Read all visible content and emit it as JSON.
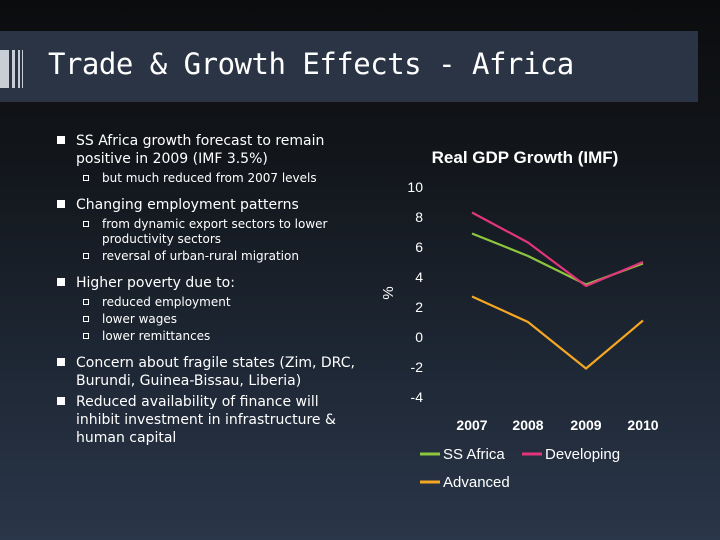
{
  "slide": {
    "title": "Trade & Growth Effects - Africa",
    "bullets": [
      {
        "text": "SS Africa growth forecast to remain positive in 2009  (IMF 3.5%)",
        "sub": [
          "but much reduced from 2007 levels"
        ]
      },
      {
        "text": "Changing employment patterns",
        "sub": [
          "from dynamic export sectors to lower productivity sectors",
          "reversal of urban-rural migration"
        ]
      },
      {
        "text": "Higher poverty due to:",
        "sub": [
          "reduced employment",
          "lower wages",
          "lower remittances"
        ]
      },
      {
        "text": "Concern about fragile states (Zim, DRC, Burundi, Guinea-Bissau, Liberia)",
        "sub": []
      },
      {
        "text": "Reduced availability of finance will inhibit investment in infrastructure & human capital",
        "sub": []
      }
    ]
  },
  "chart_data": {
    "type": "line",
    "title": "Real GDP Growth (IMF)",
    "xlabel": "",
    "ylabel": "%",
    "categories": [
      "2007",
      "2008",
      "2009",
      "2010"
    ],
    "y_ticks": [
      "10",
      "8",
      "6",
      "4",
      "2",
      "0",
      "-2",
      "-4"
    ],
    "ylim": [
      -4,
      10
    ],
    "legend_position": "bottom",
    "series": [
      {
        "name": "SS Africa",
        "color": "#8dc63f",
        "values": [
          6.9,
          5.4,
          3.5,
          4.9
        ]
      },
      {
        "name": "Developing",
        "color": "#e2357b",
        "values": [
          8.3,
          6.3,
          3.4,
          5.0
        ]
      },
      {
        "name": "Advanced",
        "color": "#f5a623",
        "values": [
          2.7,
          1.0,
          -2.1,
          1.1
        ]
      }
    ]
  }
}
